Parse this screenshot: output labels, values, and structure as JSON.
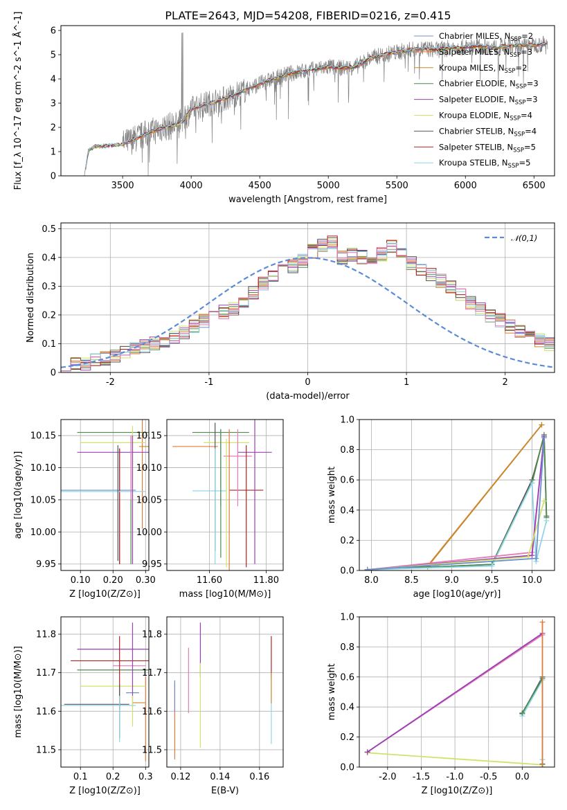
{
  "figure": {
    "title": "PLATE=2643, MJD=54208, FIBERID=0216, z=0.415"
  },
  "colors": {
    "Chabrier MILES": "#6d8fd0",
    "Salpeter MILES": "#e07b39",
    "Kroupa MILES": "#c8882a",
    "Chabrier ELODIE": "#4e8a4e",
    "Salpeter ELODIE": "#9a3fb5",
    "Kroupa ELODIE": "#cfe36a",
    "Chabrier STELIB": "#555555",
    "Salpeter STELIB": "#b22222",
    "Kroupa STELIB": "#8fd6e6",
    "pink": "#e57ab8",
    "grid": "#b0b0b0"
  },
  "chart_data": [
    {
      "id": "spectrum",
      "type": "line",
      "xlabel": "wavelength [Angstrom, rest frame]",
      "ylabel": "Flux [f_λ 10^-17 erg cm^-2 s^-1 Å^-1]",
      "xlim": [
        3050,
        6650
      ],
      "ylim": [
        0,
        6.2
      ],
      "xticks": [
        3500,
        4000,
        4500,
        5000,
        5500,
        6000,
        6500
      ],
      "yticks": [
        0,
        1,
        2,
        3,
        4,
        5,
        6
      ],
      "grid": false,
      "legend_position": "upper-right",
      "legend": [
        {
          "label": "Chabrier MILES, N_SSP=2",
          "color": "#6d8fd0"
        },
        {
          "label": "Salpeter MILES, N_SSP=3",
          "color": "#e07b39"
        },
        {
          "label": "Kroupa MILES, N_SSP=2",
          "color": "#c8882a"
        },
        {
          "label": "Chabrier ELODIE, N_SSP=3",
          "color": "#4e8a4e"
        },
        {
          "label": "Salpeter ELODIE, N_SSP=3",
          "color": "#9a3fb5"
        },
        {
          "label": "Kroupa ELODIE, N_SSP=4",
          "color": "#cfe36a"
        },
        {
          "label": "Chabrier STELIB, N_SSP=4",
          "color": "#555555"
        },
        {
          "label": "Salpeter STELIB, N_SSP=5",
          "color": "#b22222"
        },
        {
          "label": "Kroupa STELIB, N_SSP=5",
          "color": "#8fd6e6"
        }
      ],
      "model_continuum": {
        "x": [
          3220,
          3250,
          3300,
          3400,
          3500,
          3600,
          3700,
          3800,
          3900,
          3950,
          4000,
          4100,
          4200,
          4300,
          4400,
          4500,
          4600,
          4700,
          4800,
          4900,
          5000,
          5100,
          5200,
          5300,
          5400,
          5500,
          5600,
          5700,
          5800,
          5900,
          6000,
          6100,
          6200,
          6300,
          6400,
          6500,
          6600
        ],
        "y": [
          0,
          1.05,
          1.2,
          1.25,
          1.3,
          1.55,
          1.8,
          2.0,
          2.1,
          2.3,
          2.75,
          2.95,
          3.1,
          3.3,
          3.55,
          3.8,
          4.0,
          4.2,
          4.3,
          4.4,
          4.5,
          4.45,
          4.5,
          4.85,
          5.0,
          5.1,
          5.2,
          5.25,
          5.2,
          5.3,
          5.3,
          5.35,
          5.3,
          5.35,
          5.4,
          5.4,
          5.45
        ]
      },
      "observed_range": {
        "start": 3220,
        "end": 6600
      }
    },
    {
      "id": "residual-histogram",
      "type": "line",
      "xlabel": "(data-model)/error",
      "ylabel": "Normed distribution",
      "xlim": [
        -2.5,
        2.5
      ],
      "ylim": [
        0,
        0.52
      ],
      "xticks": [
        -2,
        -1,
        0,
        1,
        2
      ],
      "yticks": [
        0.0,
        0.1,
        0.2,
        0.3,
        0.4,
        0.5
      ],
      "grid": true,
      "legend_position": "upper-right",
      "legend": [
        {
          "label": "𝒩(0,1)",
          "color": "#5b8bd6",
          "style": "dashed"
        }
      ],
      "bin_width": 0.1,
      "bin_start": -2.5,
      "histogram_base": [
        0.02,
        0.03,
        0.03,
        0.04,
        0.05,
        0.06,
        0.07,
        0.08,
        0.09,
        0.1,
        0.11,
        0.12,
        0.14,
        0.16,
        0.18,
        0.19,
        0.21,
        0.22,
        0.25,
        0.28,
        0.31,
        0.34,
        0.36,
        0.37,
        0.39,
        0.42,
        0.44,
        0.45,
        0.4,
        0.41,
        0.4,
        0.39,
        0.41,
        0.44,
        0.41,
        0.38,
        0.36,
        0.34,
        0.32,
        0.3,
        0.27,
        0.24,
        0.22,
        0.2,
        0.18,
        0.16,
        0.14,
        0.13,
        0.11,
        0.1,
        0.1,
        0.09,
        0.08,
        0.08,
        0.07,
        0.05,
        0.05,
        0.04,
        0.03,
        0.03
      ]
    },
    {
      "id": "age-vs-Z",
      "type": "scatter",
      "xlabel": "Z [log10(Z/Z⊙)]",
      "ylabel": "age  [log10(age/yr)]",
      "xlim": [
        0.04,
        0.31
      ],
      "ylim": [
        9.94,
        10.175
      ],
      "xticks": [
        0.1,
        0.2,
        0.3
      ],
      "yticks": [
        9.95,
        10.0,
        10.05,
        10.1,
        10.15
      ],
      "grid": true,
      "errorbars": [
        {
          "color": "#6d8fd0",
          "x": 0.05,
          "y": 10.065,
          "xerr": 0.22,
          "yerr": 0.0
        },
        {
          "color": "#e07b39",
          "x": 0.29,
          "y": 10.095,
          "xerr": 0.0,
          "yerr": 0.09
        },
        {
          "color": "#c8882a",
          "x": 0.3,
          "y": 10.133,
          "xerr": 0.02,
          "yerr": 0.0
        },
        {
          "color": "#4e8a4e",
          "x": 0.2,
          "y": 10.155,
          "xerr": 0.11,
          "yerr": 0.0
        },
        {
          "color": "#9a3fb5",
          "x": 0.2,
          "y": 10.124,
          "xerr": 0.11,
          "yerr": 0.0
        },
        {
          "color": "#cfe36a",
          "x": 0.2,
          "y": 10.139,
          "xerr": 0.1,
          "yerr": 0.0
        },
        {
          "color": "#555555",
          "x": 0.22,
          "y": 10.04,
          "xerr": 0.0,
          "yerr": 0.09
        },
        {
          "color": "#b22222",
          "x": 0.22,
          "y": 10.04,
          "xerr": 0.0,
          "yerr": 0.09
        },
        {
          "color": "#8fd6e6",
          "x": 0.15,
          "y": 10.063,
          "xerr": 0.15,
          "yerr": 0.0
        },
        {
          "color": "#cfe36a",
          "x": 0.26,
          "y": 10.06,
          "xerr": 0.0,
          "yerr": 0.105
        },
        {
          "color": "#4e8a4e",
          "x": 0.255,
          "y": 10.05,
          "xerr": 0.0,
          "yerr": 0.1
        },
        {
          "color": "#9a3fb5",
          "x": 0.26,
          "y": 10.05,
          "xerr": 0.0,
          "yerr": 0.1
        },
        {
          "color": "#555555",
          "x": 0.215,
          "y": 10.045,
          "xerr": 0.0,
          "yerr": 0.09
        },
        {
          "color": "#e57ab8",
          "x": 0.255,
          "y": 10.1,
          "xerr": 0.0,
          "yerr": 0.05
        }
      ]
    },
    {
      "id": "age-vs-mass",
      "type": "scatter",
      "xlabel": "mass [log10(M/M⊙)]",
      "ylabel": "",
      "xlim": [
        11.45,
        11.86
      ],
      "ylim": [
        9.94,
        10.175
      ],
      "xticks": [
        11.6,
        11.8
      ],
      "yticks": [
        9.95,
        10.0,
        10.05,
        10.1,
        10.15
      ],
      "grid": true,
      "errorbars": [
        {
          "color": "#e07b39",
          "x": 11.55,
          "y": 10.133,
          "xerr": 0.08,
          "yerr": 0.0
        },
        {
          "color": "#4e8a4e",
          "x": 11.64,
          "y": 10.155,
          "xerr": 0.1,
          "yerr": 0.0
        },
        {
          "color": "#9a3fb5",
          "x": 11.76,
          "y": 10.124,
          "xerr": 0.06,
          "yerr": 0.0
        },
        {
          "color": "#cfe36a",
          "x": 11.66,
          "y": 10.139,
          "xerr": 0.08,
          "yerr": 0.0
        },
        {
          "color": "#8fd6e6",
          "x": 11.6,
          "y": 10.064,
          "xerr": 0.06,
          "yerr": 0.0
        },
        {
          "color": "#b22222",
          "x": 11.73,
          "y": 10.065,
          "xerr": 0.06,
          "yerr": 0.0
        },
        {
          "color": "#e57ab8",
          "x": 11.7,
          "y": 10.118,
          "xerr": 0.05,
          "yerr": 0.0
        },
        {
          "color": "#6d8fd0",
          "x": 11.64,
          "y": 10.1,
          "xerr": 0.0,
          "yerr": 0.06
        },
        {
          "color": "#555555",
          "x": 11.62,
          "y": 10.07,
          "xerr": 0.0,
          "yerr": 0.1
        },
        {
          "color": "#8fd6e6",
          "x": 11.62,
          "y": 10.04,
          "xerr": 0.0,
          "yerr": 0.09
        },
        {
          "color": "#e07b39",
          "x": 11.67,
          "y": 10.05,
          "xerr": 0.0,
          "yerr": 0.11
        },
        {
          "color": "#cfe36a",
          "x": 11.66,
          "y": 10.045,
          "xerr": 0.0,
          "yerr": 0.1
        },
        {
          "color": "#9a3fb5",
          "x": 11.76,
          "y": 10.07,
          "xerr": 0.0,
          "yerr": 0.12
        },
        {
          "color": "#b22222",
          "x": 11.73,
          "y": 10.04,
          "xerr": 0.0,
          "yerr": 0.095
        },
        {
          "color": "#e57ab8",
          "x": 11.7,
          "y": 10.1,
          "xerr": 0.0,
          "yerr": 0.06
        },
        {
          "color": "#4e8a4e",
          "x": 11.64,
          "y": 10.06,
          "xerr": 0.0,
          "yerr": 0.1
        }
      ]
    },
    {
      "id": "mass-weight-vs-age",
      "type": "line",
      "xlabel": "age  [log10(age/yr)]",
      "ylabel": "mass weight",
      "xlim": [
        7.85,
        10.28
      ],
      "ylim": [
        0,
        1.0
      ],
      "xticks": [
        8.0,
        8.5,
        9.0,
        9.5,
        10.0
      ],
      "yticks": [
        0.0,
        0.2,
        0.4,
        0.6,
        0.8,
        1.0
      ],
      "grid": true,
      "series": [
        {
          "color": "#e07b39",
          "x": [
            7.95,
            8.7,
            10.12
          ],
          "y": [
            0.005,
            0.03,
            0.965
          ]
        },
        {
          "color": "#c8882a",
          "x": [
            7.95,
            8.7,
            10.12
          ],
          "y": [
            0.005,
            0.025,
            0.965
          ]
        },
        {
          "color": "#555555",
          "x": [
            7.95,
            9.5,
            10.0,
            10.15,
            10.18
          ],
          "y": [
            0.005,
            0.04,
            0.6,
            0.89,
            0.36
          ]
        },
        {
          "color": "#4e8a4e",
          "x": [
            7.95,
            9.5,
            10.0,
            10.15,
            10.18
          ],
          "y": [
            0.005,
            0.04,
            0.58,
            0.9,
            0.35
          ]
        },
        {
          "color": "#8fd6e6",
          "x": [
            7.95,
            9.5,
            10.0,
            10.05,
            10.18
          ],
          "y": [
            0.005,
            0.03,
            0.58,
            0.06,
            0.33
          ]
        },
        {
          "color": "#e57ab8",
          "x": [
            7.95,
            10.0,
            10.15
          ],
          "y": [
            0.005,
            0.12,
            0.88
          ]
        },
        {
          "color": "#9a3fb5",
          "x": [
            7.95,
            10.0,
            10.15
          ],
          "y": [
            0.005,
            0.1,
            0.89
          ]
        },
        {
          "color": "#cfe36a",
          "x": [
            7.95,
            9.95,
            10.15
          ],
          "y": [
            0.005,
            0.09,
            0.46
          ]
        },
        {
          "color": "#6d8fd0",
          "x": [
            7.95,
            10.05,
            10.15
          ],
          "y": [
            0.005,
            0.08,
            0.88
          ]
        }
      ]
    },
    {
      "id": "mass-vs-Z",
      "type": "scatter",
      "xlabel": "Z [log10(Z/Z⊙)]",
      "ylabel": "mass [log10(M/M⊙)]",
      "xlim": [
        0.04,
        0.31
      ],
      "ylim": [
        11.455,
        11.845
      ],
      "xticks": [
        0.1,
        0.2,
        0.3
      ],
      "yticks": [
        11.5,
        11.6,
        11.7,
        11.8
      ],
      "grid": true,
      "errorbars": [
        {
          "color": "#6d8fd0",
          "x": 0.26,
          "y": 11.648,
          "xerr": 0.02,
          "yerr": 0.0
        },
        {
          "color": "#e07b39",
          "x": 0.3,
          "y": 11.58,
          "xerr": 0.0,
          "yerr": 0.11
        },
        {
          "color": "#c8882a",
          "x": 0.28,
          "y": 11.622,
          "xerr": 0.02,
          "yerr": 0.0
        },
        {
          "color": "#4e8a4e",
          "x": 0.2,
          "y": 11.707,
          "xerr": 0.11,
          "yerr": 0.0
        },
        {
          "color": "#9a3fb5",
          "x": 0.2,
          "y": 11.761,
          "xerr": 0.11,
          "yerr": 0.0
        },
        {
          "color": "#cfe36a",
          "x": 0.2,
          "y": 11.665,
          "xerr": 0.1,
          "yerr": 0.0
        },
        {
          "color": "#555555",
          "x": 0.15,
          "y": 11.618,
          "xerr": 0.1,
          "yerr": 0.0
        },
        {
          "color": "#b22222",
          "x": 0.19,
          "y": 11.731,
          "xerr": 0.12,
          "yerr": 0.0
        },
        {
          "color": "#8fd6e6",
          "x": 0.15,
          "y": 11.615,
          "xerr": 0.12,
          "yerr": 0.0
        },
        {
          "color": "#e57ab8",
          "x": 0.25,
          "y": 11.718,
          "xerr": 0.05,
          "yerr": 0.0
        },
        {
          "color": "#9a3fb5",
          "x": 0.26,
          "y": 11.72,
          "xerr": 0.0,
          "yerr": 0.11
        },
        {
          "color": "#b22222",
          "x": 0.22,
          "y": 11.7,
          "xerr": 0.0,
          "yerr": 0.095
        },
        {
          "color": "#555555",
          "x": 0.22,
          "y": 11.6,
          "xerr": 0.0,
          "yerr": 0.07
        },
        {
          "color": "#8fd6e6",
          "x": 0.22,
          "y": 11.58,
          "xerr": 0.0,
          "yerr": 0.06
        },
        {
          "color": "#cfe36a",
          "x": 0.26,
          "y": 11.6,
          "xerr": 0.0,
          "yerr": 0.04
        }
      ]
    },
    {
      "id": "mass-vs-EBV",
      "type": "scatter",
      "xlabel": "E(B-V)",
      "ylabel": "",
      "xlim": [
        0.113,
        0.172
      ],
      "ylim": [
        11.455,
        11.845
      ],
      "xticks": [
        0.12,
        0.14,
        0.16
      ],
      "yticks": [
        11.5,
        11.6,
        11.7,
        11.8
      ],
      "grid": true,
      "errorbars": [
        {
          "color": "#e07b39",
          "x": 0.117,
          "y": 11.575,
          "xerr": 0.0,
          "yerr": 0.1
        },
        {
          "color": "#6d8fd0",
          "x": 0.117,
          "y": 11.64,
          "xerr": 0.0,
          "yerr": 0.04
        },
        {
          "color": "#e57ab8",
          "x": 0.124,
          "y": 11.68,
          "xerr": 0.0,
          "yerr": 0.085
        },
        {
          "color": "#9a3fb5",
          "x": 0.13,
          "y": 11.76,
          "xerr": 0.0,
          "yerr": 0.07
        },
        {
          "color": "#cfe36a",
          "x": 0.13,
          "y": 11.615,
          "xerr": 0.0,
          "yerr": 0.11
        },
        {
          "color": "#b22222",
          "x": 0.166,
          "y": 11.74,
          "xerr": 0.0,
          "yerr": 0.055
        },
        {
          "color": "#8fd6e6",
          "x": 0.166,
          "y": 11.6,
          "xerr": 0.0,
          "yerr": 0.085
        },
        {
          "color": "#c8882a",
          "x": 0.166,
          "y": 11.66,
          "xerr": 0.0,
          "yerr": 0.04
        }
      ]
    },
    {
      "id": "mass-weight-vs-Z",
      "type": "line",
      "xlabel": "Z [log10(Z/Z⊙)]",
      "ylabel": "mass weight",
      "xlim": [
        -2.42,
        0.48
      ],
      "ylim": [
        0,
        1.0
      ],
      "xticks": [
        -2.0,
        -1.5,
        -1.0,
        -0.5,
        0.0
      ],
      "yticks": [
        0.0,
        0.2,
        0.4,
        0.6,
        0.8,
        1.0
      ],
      "grid": true,
      "series": [
        {
          "color": "#cfe36a",
          "x": [
            -2.3,
            0.3
          ],
          "y": [
            0.095,
            0.015
          ]
        },
        {
          "color": "#e57ab8",
          "x": [
            -2.3,
            0.3
          ],
          "y": [
            0.1,
            0.88
          ]
        },
        {
          "color": "#9a3fb5",
          "x": [
            -2.3,
            0.3
          ],
          "y": [
            0.1,
            0.89
          ]
        },
        {
          "color": "#555555",
          "x": [
            0.0,
            0.3,
            0.3
          ],
          "y": [
            0.355,
            0.6,
            0.02
          ]
        },
        {
          "color": "#8fd6e6",
          "x": [
            0.0,
            0.3,
            0.3
          ],
          "y": [
            0.34,
            0.58,
            0.05
          ]
        },
        {
          "color": "#4e8a4e",
          "x": [
            0.0,
            0.3
          ],
          "y": [
            0.36,
            0.59
          ]
        },
        {
          "color": "#e07b39",
          "x": [
            0.3,
            0.3
          ],
          "y": [
            0.0,
            0.965
          ]
        }
      ]
    }
  ]
}
